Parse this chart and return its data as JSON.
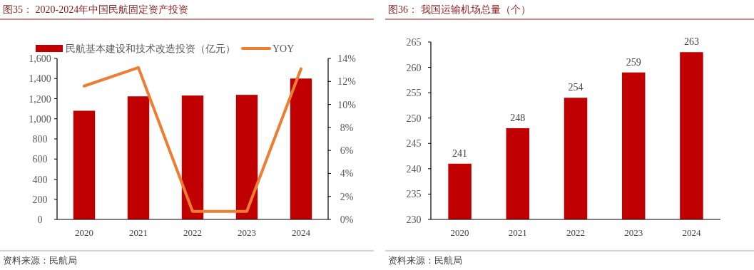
{
  "chart_data": [
    {
      "type": "bar",
      "title": "图35：  2020-2024年中国民航固定资产投资",
      "categories": [
        "2020",
        "2021",
        "2022",
        "2023",
        "2024"
      ],
      "series": [
        {
          "name": "民航基本建设和技术改造投资（亿元）",
          "color": "#c00000",
          "values": [
            1080,
            1223,
            1231,
            1238,
            1400
          ]
        },
        {
          "name": "YOY",
          "type": "line",
          "axis": "y2",
          "color": "#ed7d31",
          "values": [
            11.6,
            13.2,
            0.7,
            0.7,
            13.1
          ]
        }
      ],
      "ylim": [
        0,
        1600
      ],
      "yticks": [
        0,
        200,
        400,
        600,
        800,
        {
          "value": 1000,
          "label": "1,000"
        },
        {
          "value": 1200,
          "label": "1,200"
        },
        {
          "value": 1400,
          "label": "1,400"
        },
        {
          "value": 1600,
          "label": "1,600"
        }
      ],
      "y2lim": [
        0,
        14
      ],
      "y2ticks": [
        {
          "value": 0,
          "label": "0%"
        },
        {
          "value": 2,
          "label": "2%"
        },
        {
          "value": 4,
          "label": "4%"
        },
        {
          "value": 6,
          "label": "6%"
        },
        {
          "value": 8,
          "label": "8%"
        },
        {
          "value": 10,
          "label": "10%"
        },
        {
          "value": 12,
          "label": "12%"
        },
        {
          "value": 14,
          "label": "14%"
        }
      ],
      "legend": "top",
      "grid": false,
      "line_style": "solid",
      "marker": "none",
      "annotations": [
        "资料来源：民航局"
      ]
    },
    {
      "type": "bar",
      "title": "图36：  我国运输机场总量（个）",
      "categories": [
        "2020",
        "2021",
        "2022",
        "2023",
        "2024"
      ],
      "values": [
        241,
        248,
        254,
        259,
        263
      ],
      "color": "#c00000",
      "ylim": [
        230,
        265
      ],
      "yticks": [
        230,
        235,
        240,
        245,
        250,
        255,
        260,
        265
      ],
      "data_labels": true,
      "grid": false,
      "legend": false,
      "annotations": [
        "资料来源：民航局"
      ]
    }
  ]
}
